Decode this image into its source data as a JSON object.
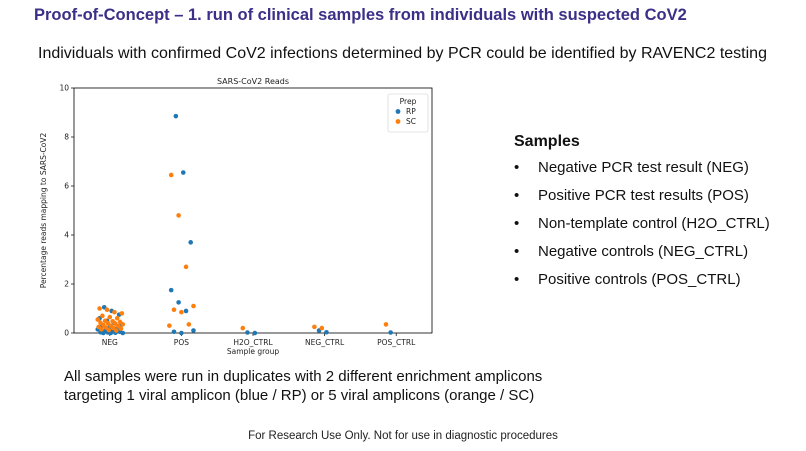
{
  "slide": {
    "title": "Proof-of-Concept – 1. run of clinical samples from individuals with suspected CoV2",
    "headline": "Individuals with confirmed CoV2 infections determined by PCR could be identified by RAVENC2 testing",
    "samples_heading": "Samples",
    "samples_bullet": "•",
    "samples": [
      "Negative PCR test result (NEG)",
      "Positive PCR test results (POS)",
      "Non-template control (H2O_CTRL)",
      "Negative controls (NEG_CTRL)",
      "Positive controls (POS_CTRL)"
    ],
    "footnote_line1": "All samples were run in duplicates with 2 different enrichment amplicons",
    "footnote_line2": "targeting 1 viral amplicon (blue / RP) or 5 viral amplicons (orange / SC)",
    "disclaimer": "For Research Use Only. Not for use in diagnostic procedures"
  },
  "colors": {
    "title": "#3b2f87",
    "RP": "#1f77b4",
    "SC": "#ff7f0e"
  },
  "chart_data": {
    "type": "scatter",
    "subtype": "strip plot",
    "title": "SARS-CoV2 Reads",
    "xlabel": "Sample group",
    "ylabel": "Percentage reads mapping to SARS-CoV2",
    "categories": [
      "NEG",
      "POS",
      "H2O_CTRL",
      "NEG_CTRL",
      "POS_CTRL"
    ],
    "ylim": [
      0,
      10
    ],
    "yticks": [
      0,
      2,
      4,
      6,
      8,
      10
    ],
    "grid": false,
    "legend": {
      "title": "Prep",
      "position": "top-right",
      "entries": [
        "RP",
        "SC"
      ]
    },
    "series": [
      {
        "name": "RP",
        "color": "#1f77b4",
        "points": [
          {
            "x": "NEG",
            "y": 1.05
          },
          {
            "x": "NEG",
            "y": 0.9
          },
          {
            "x": "NEG",
            "y": 0.75
          },
          {
            "x": "NEG",
            "y": 0.6
          },
          {
            "x": "NEG",
            "y": 0.5
          },
          {
            "x": "NEG",
            "y": 0.4
          },
          {
            "x": "NEG",
            "y": 0.35
          },
          {
            "x": "NEG",
            "y": 0.3
          },
          {
            "x": "NEG",
            "y": 0.25
          },
          {
            "x": "NEG",
            "y": 0.2
          },
          {
            "x": "NEG",
            "y": 0.15
          },
          {
            "x": "NEG",
            "y": 0.1
          },
          {
            "x": "NEG",
            "y": 0.08
          },
          {
            "x": "NEG",
            "y": 0.05
          },
          {
            "x": "NEG",
            "y": 0.03
          },
          {
            "x": "NEG",
            "y": 0.02
          },
          {
            "x": "NEG",
            "y": 0.01
          },
          {
            "x": "NEG",
            "y": 0.0
          },
          {
            "x": "NEG",
            "y": 0.0
          },
          {
            "x": "NEG",
            "y": 0.0
          },
          {
            "x": "POS",
            "y": 8.85
          },
          {
            "x": "POS",
            "y": 6.55
          },
          {
            "x": "POS",
            "y": 3.7
          },
          {
            "x": "POS",
            "y": 1.75
          },
          {
            "x": "POS",
            "y": 1.25
          },
          {
            "x": "POS",
            "y": 0.9
          },
          {
            "x": "POS",
            "y": 0.1
          },
          {
            "x": "POS",
            "y": 0.05
          },
          {
            "x": "POS",
            "y": 0.0
          },
          {
            "x": "H2O_CTRL",
            "y": 0.02
          },
          {
            "x": "H2O_CTRL",
            "y": 0.0
          },
          {
            "x": "NEG_CTRL",
            "y": 0.1
          },
          {
            "x": "NEG_CTRL",
            "y": 0.03
          },
          {
            "x": "POS_CTRL",
            "y": 0.02
          }
        ]
      },
      {
        "name": "SC",
        "color": "#ff7f0e",
        "points": [
          {
            "x": "NEG",
            "y": 1.0
          },
          {
            "x": "NEG",
            "y": 0.95
          },
          {
            "x": "NEG",
            "y": 0.85
          },
          {
            "x": "NEG",
            "y": 0.8
          },
          {
            "x": "NEG",
            "y": 0.7
          },
          {
            "x": "NEG",
            "y": 0.65
          },
          {
            "x": "NEG",
            "y": 0.6
          },
          {
            "x": "NEG",
            "y": 0.55
          },
          {
            "x": "NEG",
            "y": 0.5
          },
          {
            "x": "NEG",
            "y": 0.48
          },
          {
            "x": "NEG",
            "y": 0.45
          },
          {
            "x": "NEG",
            "y": 0.42
          },
          {
            "x": "NEG",
            "y": 0.4
          },
          {
            "x": "NEG",
            "y": 0.38
          },
          {
            "x": "NEG",
            "y": 0.35
          },
          {
            "x": "NEG",
            "y": 0.33
          },
          {
            "x": "NEG",
            "y": 0.3
          },
          {
            "x": "NEG",
            "y": 0.28
          },
          {
            "x": "NEG",
            "y": 0.25
          },
          {
            "x": "NEG",
            "y": 0.22
          },
          {
            "x": "NEG",
            "y": 0.2
          },
          {
            "x": "NEG",
            "y": 0.18
          },
          {
            "x": "NEG",
            "y": 0.15
          },
          {
            "x": "NEG",
            "y": 0.12
          },
          {
            "x": "NEG",
            "y": 0.1
          },
          {
            "x": "POS",
            "y": 6.45
          },
          {
            "x": "POS",
            "y": 4.8
          },
          {
            "x": "POS",
            "y": 2.7
          },
          {
            "x": "POS",
            "y": 1.1
          },
          {
            "x": "POS",
            "y": 0.95
          },
          {
            "x": "POS",
            "y": 0.85
          },
          {
            "x": "POS",
            "y": 0.35
          },
          {
            "x": "POS",
            "y": 0.3
          },
          {
            "x": "H2O_CTRL",
            "y": 0.2
          },
          {
            "x": "NEG_CTRL",
            "y": 0.25
          },
          {
            "x": "NEG_CTRL",
            "y": 0.2
          },
          {
            "x": "POS_CTRL",
            "y": 0.35
          }
        ]
      }
    ]
  }
}
